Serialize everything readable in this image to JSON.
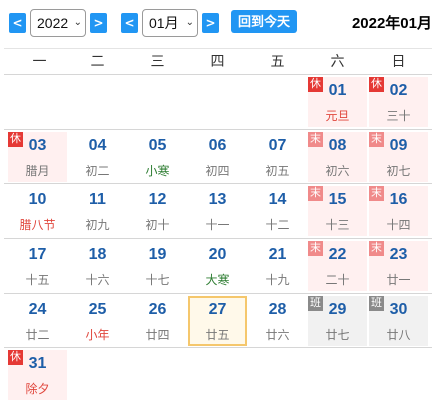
{
  "toolbar": {
    "prev_year": "<",
    "next_year": ">",
    "prev_month": "<",
    "next_month": ">",
    "year_value": "2022",
    "month_value": "01月",
    "select_arrow": "⌄",
    "today_label": "回到今天",
    "title": "2022年01月"
  },
  "weekdays": [
    "一",
    "二",
    "三",
    "四",
    "五",
    "六",
    "日"
  ],
  "weeks": [
    [
      null,
      null,
      null,
      null,
      null,
      {
        "day": "01",
        "sub": "元旦",
        "sub_style": "red",
        "bg": "rest",
        "badge": "休",
        "badge_style": "xiu"
      },
      {
        "day": "02",
        "sub": "三十",
        "sub_style": "",
        "bg": "rest",
        "badge": "休",
        "badge_style": "xiu"
      }
    ],
    [
      {
        "day": "03",
        "sub": "腊月",
        "sub_style": "",
        "bg": "rest",
        "badge": "休",
        "badge_style": "xiu"
      },
      {
        "day": "04",
        "sub": "初二",
        "sub_style": "",
        "bg": "",
        "badge": ""
      },
      {
        "day": "05",
        "sub": "小寒",
        "sub_style": "green",
        "bg": "",
        "badge": ""
      },
      {
        "day": "06",
        "sub": "初四",
        "sub_style": "",
        "bg": "",
        "badge": ""
      },
      {
        "day": "07",
        "sub": "初五",
        "sub_style": "",
        "bg": "",
        "badge": ""
      },
      {
        "day": "08",
        "sub": "初六",
        "sub_style": "",
        "bg": "rest",
        "badge": "末",
        "badge_style": "mo"
      },
      {
        "day": "09",
        "sub": "初七",
        "sub_style": "",
        "bg": "rest",
        "badge": "末",
        "badge_style": "mo"
      }
    ],
    [
      {
        "day": "10",
        "sub": "腊八节",
        "sub_style": "red",
        "bg": "",
        "badge": ""
      },
      {
        "day": "11",
        "sub": "初九",
        "sub_style": "",
        "bg": "",
        "badge": ""
      },
      {
        "day": "12",
        "sub": "初十",
        "sub_style": "",
        "bg": "",
        "badge": ""
      },
      {
        "day": "13",
        "sub": "十一",
        "sub_style": "",
        "bg": "",
        "badge": ""
      },
      {
        "day": "14",
        "sub": "十二",
        "sub_style": "",
        "bg": "",
        "badge": ""
      },
      {
        "day": "15",
        "sub": "十三",
        "sub_style": "",
        "bg": "rest",
        "badge": "末",
        "badge_style": "mo"
      },
      {
        "day": "16",
        "sub": "十四",
        "sub_style": "",
        "bg": "rest",
        "badge": "末",
        "badge_style": "mo"
      }
    ],
    [
      {
        "day": "17",
        "sub": "十五",
        "sub_style": "",
        "bg": "",
        "badge": ""
      },
      {
        "day": "18",
        "sub": "十六",
        "sub_style": "",
        "bg": "",
        "badge": ""
      },
      {
        "day": "19",
        "sub": "十七",
        "sub_style": "",
        "bg": "",
        "badge": ""
      },
      {
        "day": "20",
        "sub": "大寒",
        "sub_style": "green",
        "bg": "",
        "badge": ""
      },
      {
        "day": "21",
        "sub": "十九",
        "sub_style": "",
        "bg": "",
        "badge": ""
      },
      {
        "day": "22",
        "sub": "二十",
        "sub_style": "",
        "bg": "rest",
        "badge": "末",
        "badge_style": "mo"
      },
      {
        "day": "23",
        "sub": "廿一",
        "sub_style": "",
        "bg": "rest",
        "badge": "末",
        "badge_style": "mo"
      }
    ],
    [
      {
        "day": "24",
        "sub": "廿二",
        "sub_style": "",
        "bg": "",
        "badge": ""
      },
      {
        "day": "25",
        "sub": "小年",
        "sub_style": "red",
        "bg": "",
        "badge": ""
      },
      {
        "day": "26",
        "sub": "廿四",
        "sub_style": "",
        "bg": "",
        "badge": ""
      },
      {
        "day": "27",
        "sub": "廿五",
        "sub_style": "",
        "bg": "today",
        "badge": ""
      },
      {
        "day": "28",
        "sub": "廿六",
        "sub_style": "",
        "bg": "",
        "badge": ""
      },
      {
        "day": "29",
        "sub": "廿七",
        "sub_style": "",
        "bg": "work",
        "badge": "班",
        "badge_style": "ban"
      },
      {
        "day": "30",
        "sub": "廿八",
        "sub_style": "",
        "bg": "work",
        "badge": "班",
        "badge_style": "ban"
      }
    ],
    [
      {
        "day": "31",
        "sub": "除夕",
        "sub_style": "red",
        "bg": "rest",
        "badge": "休",
        "badge_style": "xiu"
      },
      null,
      null,
      null,
      null,
      null,
      null
    ]
  ],
  "colors": {
    "accent": "#2196f3",
    "day_number": "#1e5ea8",
    "holiday_text": "#e0463c",
    "solar_term_text": "#2e7d32",
    "rest_bg": "#fff0f0",
    "work_bg": "#f1f1f1",
    "today_border": "#f5c76c"
  }
}
